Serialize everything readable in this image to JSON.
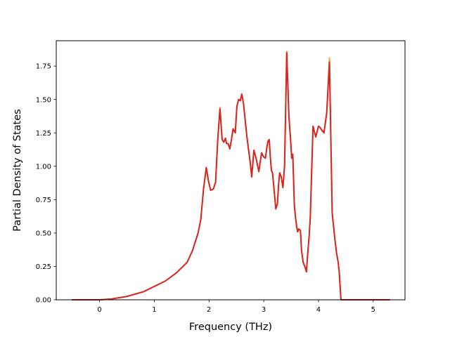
{
  "chart_data": {
    "type": "line",
    "title": "",
    "xlabel": "Frequency (THz)",
    "ylabel": "Partial Density of States",
    "xlim": [
      -0.79,
      5.58
    ],
    "ylim": [
      0.0,
      1.94
    ],
    "xticks": [
      0,
      1,
      2,
      3,
      4,
      5
    ],
    "xtick_labels": [
      "0",
      "1",
      "2",
      "3",
      "4",
      "5"
    ],
    "yticks": [
      0.0,
      0.25,
      0.5,
      0.75,
      1.0,
      1.25,
      1.5,
      1.75
    ],
    "ytick_labels": [
      "0.00",
      "0.25",
      "0.50",
      "0.75",
      "1.00",
      "1.25",
      "1.50",
      "1.75"
    ],
    "grid": false,
    "legend": "none",
    "series": [
      {
        "color": "#ff9f1c",
        "x": [
          -0.5,
          0.0,
          0.2,
          0.5,
          0.8,
          1.0,
          1.2,
          1.4,
          1.6,
          1.7,
          1.8,
          1.85,
          1.9,
          1.95,
          1.99,
          2.03,
          2.08,
          2.12,
          2.16,
          2.2,
          2.24,
          2.27,
          2.3,
          2.32,
          2.35,
          2.38,
          2.41,
          2.44,
          2.48,
          2.51,
          2.54,
          2.57,
          2.6,
          2.63,
          2.66,
          2.69,
          2.72,
          2.75,
          2.78,
          2.82,
          2.86,
          2.91,
          2.96,
          3.0,
          3.03,
          3.06,
          3.08,
          3.1,
          3.12,
          3.14,
          3.16,
          3.19,
          3.22,
          3.25,
          3.27,
          3.29,
          3.32,
          3.35,
          3.38,
          3.42,
          3.46,
          3.49,
          3.51,
          3.53,
          3.56,
          3.58,
          3.6,
          3.62,
          3.64,
          3.67,
          3.69,
          3.72,
          3.75,
          3.78,
          3.8,
          3.83,
          3.85,
          3.9,
          3.95,
          4.0,
          4.03,
          4.06,
          4.1,
          4.15,
          4.2,
          4.25,
          4.3,
          4.33,
          4.36,
          4.38,
          4.41,
          4.44,
          4.47,
          4.5,
          4.53,
          4.56,
          4.6,
          4.65,
          4.7,
          4.75,
          4.8,
          4.83,
          5.0,
          5.3
        ],
        "y": [
          0.0,
          0.0,
          0.005,
          0.025,
          0.06,
          0.1,
          0.14,
          0.2,
          0.28,
          0.37,
          0.5,
          0.6,
          0.83,
          0.99,
          0.89,
          0.82,
          0.83,
          0.88,
          1.2,
          1.44,
          1.2,
          1.18,
          1.21,
          1.17,
          1.17,
          1.13,
          1.2,
          1.28,
          1.25,
          1.45,
          1.5,
          1.49,
          1.54,
          1.47,
          1.35,
          1.23,
          1.13,
          1.04,
          0.92,
          1.12,
          1.06,
          0.96,
          1.1,
          1.07,
          1.06,
          1.15,
          1.19,
          1.2,
          1.07,
          0.97,
          0.95,
          0.82,
          0.68,
          0.72,
          0.86,
          0.95,
          0.92,
          0.84,
          1.0,
          1.86,
          1.37,
          1.2,
          1.06,
          1.09,
          0.7,
          0.62,
          0.55,
          0.51,
          0.53,
          0.52,
          0.37,
          0.28,
          0.25,
          0.21,
          0.33,
          0.48,
          0.62,
          1.3,
          1.22,
          1.3,
          1.29,
          1.27,
          1.25,
          1.4,
          1.81,
          0.65,
          0.45,
          0.35,
          0.28,
          0.2,
          0.0,
          0.0,
          0.0,
          0.0,
          0.0,
          0.0,
          0.0,
          0.0,
          0.0,
          0.0,
          0.0,
          0.0,
          0.0,
          0.0
        ]
      },
      {
        "color": "#d62728",
        "x": [
          -0.5,
          0.0,
          0.2,
          0.5,
          0.8,
          1.0,
          1.2,
          1.4,
          1.6,
          1.7,
          1.8,
          1.85,
          1.9,
          1.95,
          1.99,
          2.03,
          2.08,
          2.12,
          2.16,
          2.2,
          2.24,
          2.27,
          2.3,
          2.32,
          2.35,
          2.38,
          2.41,
          2.44,
          2.48,
          2.51,
          2.54,
          2.57,
          2.6,
          2.63,
          2.66,
          2.69,
          2.72,
          2.75,
          2.78,
          2.82,
          2.86,
          2.91,
          2.96,
          3.0,
          3.03,
          3.06,
          3.08,
          3.1,
          3.12,
          3.14,
          3.16,
          3.19,
          3.22,
          3.25,
          3.27,
          3.29,
          3.32,
          3.35,
          3.38,
          3.42,
          3.46,
          3.49,
          3.51,
          3.53,
          3.56,
          3.58,
          3.6,
          3.62,
          3.64,
          3.67,
          3.69,
          3.72,
          3.75,
          3.78,
          3.8,
          3.83,
          3.85,
          3.9,
          3.95,
          4.0,
          4.03,
          4.06,
          4.1,
          4.15,
          4.2,
          4.25,
          4.3,
          4.33,
          4.36,
          4.38,
          4.41,
          4.44,
          4.47,
          4.5,
          4.53,
          4.56,
          4.6,
          4.65,
          4.7,
          4.75,
          4.8,
          4.83,
          5.0,
          5.3
        ],
        "y": [
          0.0,
          0.0,
          0.005,
          0.025,
          0.06,
          0.1,
          0.14,
          0.2,
          0.28,
          0.37,
          0.5,
          0.6,
          0.83,
          0.99,
          0.89,
          0.82,
          0.83,
          0.88,
          1.2,
          1.43,
          1.2,
          1.18,
          1.21,
          1.17,
          1.17,
          1.13,
          1.2,
          1.28,
          1.25,
          1.45,
          1.5,
          1.49,
          1.54,
          1.47,
          1.35,
          1.23,
          1.13,
          1.04,
          0.92,
          1.12,
          1.06,
          0.96,
          1.1,
          1.07,
          1.06,
          1.15,
          1.19,
          1.2,
          1.07,
          0.97,
          0.95,
          0.82,
          0.68,
          0.72,
          0.86,
          0.95,
          0.92,
          0.84,
          1.0,
          1.85,
          1.37,
          1.2,
          1.06,
          1.09,
          0.7,
          0.62,
          0.55,
          0.51,
          0.53,
          0.52,
          0.37,
          0.28,
          0.25,
          0.21,
          0.33,
          0.48,
          0.62,
          1.3,
          1.22,
          1.3,
          1.29,
          1.27,
          1.25,
          1.4,
          1.78,
          0.65,
          0.45,
          0.35,
          0.28,
          0.2,
          0.0,
          0.0,
          0.0,
          0.0,
          0.0,
          0.0,
          0.0,
          0.0,
          0.0,
          0.0,
          0.0,
          0.0,
          0.0,
          0.0
        ]
      }
    ]
  }
}
